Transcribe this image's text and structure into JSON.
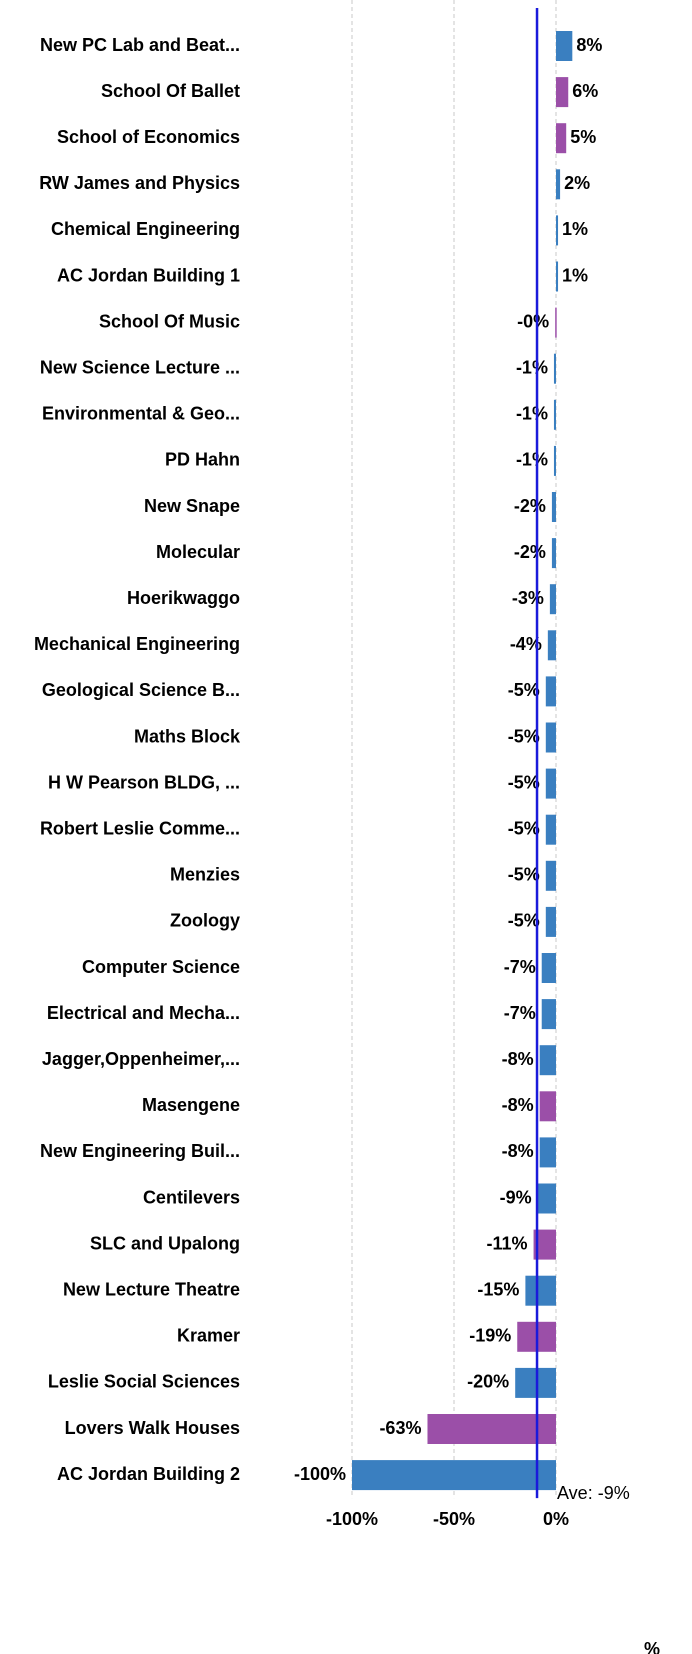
{
  "chart_data": {
    "type": "hbar",
    "categories": [
      "New PC Lab and Beat...",
      "School Of Ballet",
      "School of Economics",
      "RW James and Physics",
      "Chemical Engineering",
      "AC Jordan Building 1",
      "School Of Music",
      "New Science Lecture ...",
      "Environmental & Geo...",
      "PD Hahn",
      "New Snape",
      "Molecular",
      "Hoerikwaggo",
      "Mechanical Engineering",
      "Geological Science B...",
      "Maths Block",
      "H W Pearson BLDG, ...",
      "Robert Leslie Comme...",
      "Menzies",
      "Zoology",
      "Computer Science",
      "Electrical and Mecha...",
      "Jagger,Oppenheimer,...",
      "Masengene",
      "New Engineering Buil...",
      "Centilevers",
      "SLC and Upalong",
      "New Lecture Theatre",
      "Kramer",
      "Leslie Social Sciences",
      "Lovers Walk Houses",
      "AC Jordan Building 2"
    ],
    "values": [
      8,
      6,
      5,
      2,
      1,
      1,
      -0.4,
      -1,
      -1,
      -1,
      -2,
      -2,
      -3,
      -4,
      -5,
      -5,
      -5,
      -5,
      -5,
      -5,
      -7,
      -7,
      -8,
      -8,
      -8,
      -9,
      -11,
      -15,
      -19,
      -20,
      -63,
      -100
    ],
    "value_labels": [
      "8%",
      "6%",
      "5%",
      "2%",
      "1%",
      "1%",
      "-0%",
      "-1%",
      "-1%",
      "-1%",
      "-2%",
      "-2%",
      "-3%",
      "-4%",
      "-5%",
      "-5%",
      "-5%",
      "-5%",
      "-5%",
      "-5%",
      "-7%",
      "-7%",
      "-8%",
      "-8%",
      "-8%",
      "-9%",
      "-11%",
      "-15%",
      "-19%",
      "-20%",
      "-63%",
      "-100%"
    ],
    "colors": [
      "#3a7fc0",
      "#9b4fa8",
      "#9b4fa8",
      "#3a7fc0",
      "#3a7fc0",
      "#3a7fc0",
      "#9b4fa8",
      "#3a7fc0",
      "#3a7fc0",
      "#3a7fc0",
      "#3a7fc0",
      "#3a7fc0",
      "#3a7fc0",
      "#3a7fc0",
      "#3a7fc0",
      "#3a7fc0",
      "#3a7fc0",
      "#3a7fc0",
      "#3a7fc0",
      "#3a7fc0",
      "#3a7fc0",
      "#3a7fc0",
      "#3a7fc0",
      "#9b4fa8",
      "#3a7fc0",
      "#3a7fc0",
      "#9b4fa8",
      "#3a7fc0",
      "#9b4fa8",
      "#3a7fc0",
      "#9b4fa8",
      "#3a7fc0"
    ],
    "xlim": [
      -100,
      60
    ],
    "xticks": [
      {
        "value": -100,
        "label": "-100%"
      },
      {
        "value": -50,
        "label": "-50%"
      },
      {
        "value": 0,
        "label": "0%"
      }
    ],
    "x_label": "%",
    "average": {
      "value": -9.3,
      "label": "Ave: -9%",
      "color": "#1a1adb"
    },
    "grid": true
  }
}
